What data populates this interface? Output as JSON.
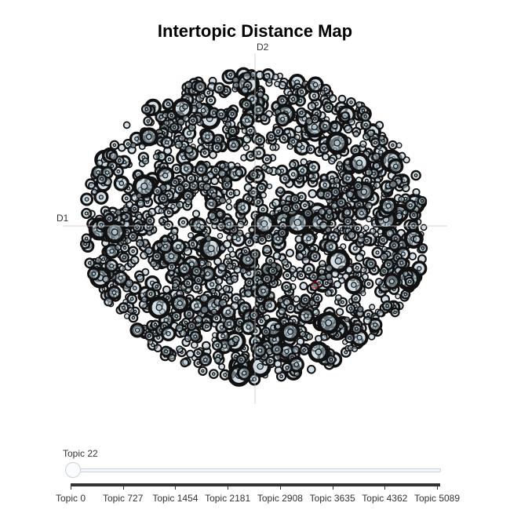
{
  "chart_data": {
    "type": "scatter",
    "title": "Intertopic Distance Map",
    "xlabel": "D1",
    "ylabel": "D2",
    "xlim": [
      -10,
      10
    ],
    "ylim": [
      -10,
      10
    ],
    "grid": false,
    "legend": "none",
    "colors": {
      "marker_fill": "#b0c4cf",
      "marker_stroke": "#111111",
      "axis_line": "#cccccc",
      "highlight": "#e60000"
    },
    "highlight_topic": 22,
    "sample_points": [
      {
        "x": -6.2,
        "y": 5.8,
        "size": 10
      },
      {
        "x": 6.1,
        "y": 4.1,
        "size": 11
      },
      {
        "x": 4.8,
        "y": 5.4,
        "size": 12
      },
      {
        "x": -8.2,
        "y": -0.4,
        "size": 12
      },
      {
        "x": 4.3,
        "y": -6.3,
        "size": 12
      },
      {
        "x": -5.6,
        "y": -5.3,
        "size": 12
      },
      {
        "x": 8.0,
        "y": -3.6,
        "size": 9
      },
      {
        "x": 7.8,
        "y": 1.3,
        "size": 9
      },
      {
        "x": -0.5,
        "y": 7.9,
        "size": 6
      },
      {
        "x": 0.3,
        "y": -8.1,
        "size": 7
      }
    ]
  },
  "slider": {
    "label": "Topic 22",
    "value": 22,
    "min": 0,
    "max": 5089,
    "ticks": [
      "Topic 0",
      "Topic 727",
      "Topic 1454",
      "Topic 2181",
      "Topic 2908",
      "Topic 3635",
      "Topic 4362",
      "Topic 5089"
    ]
  }
}
